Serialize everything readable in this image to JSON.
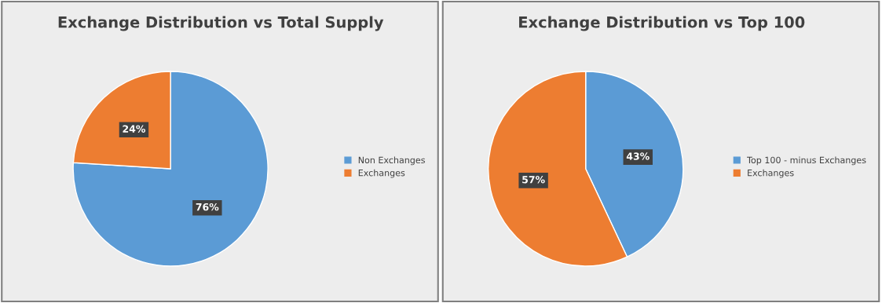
{
  "chart_data": [
    {
      "type": "pie",
      "title": "Exchange Distribution vs Total Supply",
      "categories": [
        "Non Exchanges",
        "Exchanges"
      ],
      "values": [
        76,
        24
      ],
      "colors": [
        "#5b9bd5",
        "#ed7d31"
      ],
      "value_labels": [
        "76%",
        "24%"
      ],
      "legend": "right"
    },
    {
      "type": "pie",
      "title": "Exchange Distribution vs Top 100",
      "categories": [
        "Top 100 - minus Exchanges",
        "Exchanges"
      ],
      "values": [
        43,
        57
      ],
      "colors": [
        "#5b9bd5",
        "#ed7d31"
      ],
      "value_labels": [
        "43%",
        "57%"
      ],
      "legend": "right"
    }
  ]
}
